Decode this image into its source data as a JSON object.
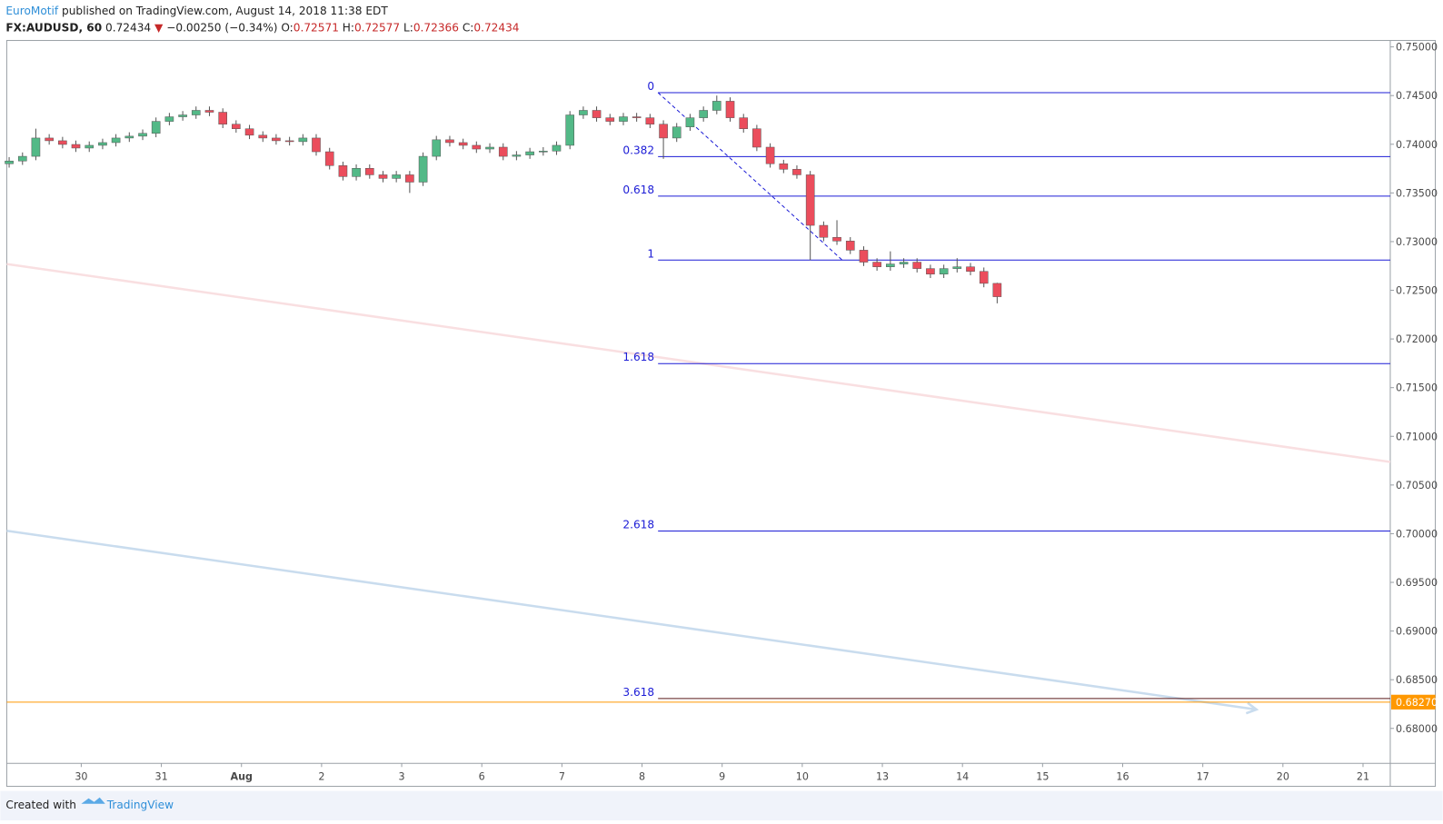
{
  "header": {
    "author": "EuroMotif",
    "published": "published on TradingView.com, August 14, 2018 11:38 EDT",
    "symbol": "FX:AUDUSD, 60",
    "last": "0.72434",
    "arrow": "▼",
    "change": "−0.00250 (−0.34%)",
    "o_label": "O:",
    "o": "0.72571",
    "h_label": "H:",
    "h": "0.72577",
    "l_label": "L:",
    "l": "0.72366",
    "c_label": "C:",
    "c": "0.72434"
  },
  "footer": {
    "created": "Created with",
    "brand": "TradingView"
  },
  "chart_data": {
    "type": "candlestick",
    "up_color": "#53b987",
    "down_color": "#eb4d5c",
    "xlim": [
      -0.93,
      16.34
    ],
    "ylim": [
      0.67641,
      0.75066
    ],
    "xticks": [
      {
        "value": 0,
        "label": "30"
      },
      {
        "value": 1,
        "label": "31"
      },
      {
        "value": 2,
        "label": "Aug"
      },
      {
        "value": 3,
        "label": "2"
      },
      {
        "value": 4,
        "label": "3"
      },
      {
        "value": 5,
        "label": "6"
      },
      {
        "value": 6,
        "label": "7"
      },
      {
        "value": 7,
        "label": "8"
      },
      {
        "value": 8,
        "label": "9"
      },
      {
        "value": 9,
        "label": "10"
      },
      {
        "value": 10,
        "label": "13"
      },
      {
        "value": 11,
        "label": "14"
      },
      {
        "value": 12,
        "label": "15"
      },
      {
        "value": 13,
        "label": "16"
      },
      {
        "value": 14,
        "label": "17"
      },
      {
        "value": 15,
        "label": "20"
      },
      {
        "value": 16,
        "label": "21"
      }
    ],
    "yticks": [
      {
        "value": 0.68,
        "label": "0.68000"
      },
      {
        "value": 0.685,
        "label": "0.68500"
      },
      {
        "value": 0.69,
        "label": "0.69000"
      },
      {
        "value": 0.695,
        "label": "0.69500"
      },
      {
        "value": 0.7,
        "label": "0.70000"
      },
      {
        "value": 0.705,
        "label": "0.70500"
      },
      {
        "value": 0.71,
        "label": "0.71000"
      },
      {
        "value": 0.715,
        "label": "0.71500"
      },
      {
        "value": 0.72,
        "label": "0.72000"
      },
      {
        "value": 0.725,
        "label": "0.72500"
      },
      {
        "value": 0.73,
        "label": "0.73000"
      },
      {
        "value": 0.735,
        "label": "0.73500"
      },
      {
        "value": 0.74,
        "label": "0.74000"
      },
      {
        "value": 0.745,
        "label": "0.74500"
      },
      {
        "value": 0.75,
        "label": "0.75000"
      }
    ],
    "x": [
      -0.9,
      -0.733,
      -0.567,
      -0.4,
      -0.233,
      -0.067,
      0.1,
      0.267,
      0.433,
      0.6,
      0.767,
      0.933,
      1.1,
      1.267,
      1.433,
      1.6,
      1.767,
      1.933,
      2.1,
      2.267,
      2.433,
      2.6,
      2.767,
      2.933,
      3.1,
      3.267,
      3.433,
      3.6,
      3.767,
      3.933,
      4.1,
      4.267,
      4.433,
      4.6,
      4.767,
      4.933,
      5.1,
      5.267,
      5.433,
      5.6,
      5.767,
      5.933,
      6.1,
      6.267,
      6.433,
      6.6,
      6.767,
      6.933,
      7.1,
      7.267,
      7.433,
      7.6,
      7.767,
      7.933,
      8.1,
      8.267,
      8.433,
      8.6,
      8.767,
      8.933,
      9.1,
      9.267,
      9.433,
      9.6,
      9.767,
      9.933,
      10.1,
      10.267,
      10.433,
      10.6,
      10.767,
      10.933,
      11.1,
      11.267,
      11.433
    ],
    "open": [
      0.738,
      0.73828,
      0.73876,
      0.74064,
      0.74036,
      0.73998,
      0.73961,
      0.73989,
      0.74017,
      0.74064,
      0.74083,
      0.74112,
      0.74235,
      0.74282,
      0.74301,
      0.74348,
      0.74329,
      0.74206,
      0.74159,
      0.74093,
      0.74064,
      0.74036,
      0.74027,
      0.74064,
      0.73923,
      0.73781,
      0.73668,
      0.73753,
      0.73686,
      0.73649,
      0.73686,
      0.73611,
      0.73876,
      0.74046,
      0.74017,
      0.73989,
      0.73951,
      0.7397,
      0.73876,
      0.7389,
      0.73923,
      0.7393,
      0.73989,
      0.74301,
      0.74348,
      0.74272,
      0.74235,
      0.74282,
      0.74272,
      0.74206,
      0.74064,
      0.74178,
      0.74272,
      0.74348,
      0.74442,
      0.74272,
      0.74159,
      0.7397,
      0.738,
      0.73743,
      0.73686,
      0.73167,
      0.73044,
      0.73006,
      0.72912,
      0.72789,
      0.72741,
      0.7277,
      0.72789,
      0.72723,
      0.72666,
      0.72723,
      0.72741,
      0.72694,
      0.72571
    ],
    "high": [
      0.73868,
      0.73916,
      0.7416,
      0.74104,
      0.74076,
      0.74038,
      0.74029,
      0.74057,
      0.74104,
      0.74123,
      0.74152,
      0.74275,
      0.74322,
      0.74341,
      0.74388,
      0.74388,
      0.74369,
      0.74246,
      0.74199,
      0.74133,
      0.74104,
      0.74076,
      0.74104,
      0.74104,
      0.73963,
      0.73821,
      0.73793,
      0.73793,
      0.73726,
      0.73726,
      0.73726,
      0.73916,
      0.74086,
      0.74086,
      0.74057,
      0.74029,
      0.7401,
      0.7401,
      0.7393,
      0.73963,
      0.7397,
      0.74029,
      0.74341,
      0.74388,
      0.74388,
      0.74312,
      0.74322,
      0.74322,
      0.74312,
      0.74246,
      0.74218,
      0.74312,
      0.74388,
      0.745,
      0.74482,
      0.74312,
      0.74199,
      0.7401,
      0.7384,
      0.73783,
      0.73726,
      0.73207,
      0.7322,
      0.73046,
      0.72952,
      0.72829,
      0.729,
      0.72829,
      0.72829,
      0.72763,
      0.72763,
      0.7283,
      0.72781,
      0.72734,
      0.72577
    ],
    "low": [
      0.7376,
      0.73788,
      0.73836,
      0.73996,
      0.73958,
      0.73921,
      0.73921,
      0.73949,
      0.73977,
      0.74024,
      0.74043,
      0.74072,
      0.74195,
      0.74242,
      0.74261,
      0.74289,
      0.74166,
      0.74119,
      0.74053,
      0.74024,
      0.73996,
      0.73987,
      0.73987,
      0.73883,
      0.73741,
      0.73628,
      0.73628,
      0.73646,
      0.73609,
      0.73609,
      0.735,
      0.73571,
      0.73836,
      0.73977,
      0.73949,
      0.73911,
      0.73911,
      0.73836,
      0.73836,
      0.7385,
      0.73883,
      0.7389,
      0.73949,
      0.74261,
      0.74232,
      0.74195,
      0.74195,
      0.74232,
      0.74166,
      0.7385,
      0.74024,
      0.74138,
      0.74232,
      0.74308,
      0.74232,
      0.74119,
      0.7393,
      0.7376,
      0.73703,
      0.73646,
      0.7281,
      0.73004,
      0.72966,
      0.72872,
      0.72749,
      0.72701,
      0.72701,
      0.7273,
      0.72683,
      0.72626,
      0.72626,
      0.72683,
      0.72654,
      0.72531,
      0.72366
    ],
    "close": [
      0.73828,
      0.73876,
      0.74064,
      0.74036,
      0.73998,
      0.73961,
      0.73989,
      0.74017,
      0.74064,
      0.74083,
      0.74112,
      0.74235,
      0.74282,
      0.74301,
      0.74348,
      0.74329,
      0.74206,
      0.74159,
      0.74093,
      0.74064,
      0.74036,
      0.74027,
      0.74064,
      0.73923,
      0.73781,
      0.73668,
      0.73753,
      0.73686,
      0.73649,
      0.73686,
      0.73611,
      0.73876,
      0.74046,
      0.74017,
      0.73989,
      0.73951,
      0.7397,
      0.73876,
      0.7389,
      0.73923,
      0.7393,
      0.73989,
      0.74301,
      0.74348,
      0.74272,
      0.74235,
      0.74282,
      0.74272,
      0.74206,
      0.74064,
      0.74178,
      0.74272,
      0.74348,
      0.74442,
      0.74272,
      0.74159,
      0.7397,
      0.738,
      0.73743,
      0.73686,
      0.73167,
      0.73044,
      0.73006,
      0.72912,
      0.72789,
      0.72741,
      0.7277,
      0.72789,
      0.72723,
      0.72666,
      0.72723,
      0.72741,
      0.72694,
      0.72571,
      0.72434
    ],
    "fib_start_x": 7.2,
    "fib_color": "#1c1cd6",
    "fib_levels": [
      {
        "ratio": 0,
        "value": 0.7453
      },
      {
        "ratio": 0.382,
        "value": 0.73873
      },
      {
        "ratio": 0.618,
        "value": 0.73467
      },
      {
        "ratio": 1,
        "value": 0.7281
      },
      {
        "ratio": 1.618,
        "value": 0.71747
      },
      {
        "ratio": 2.618,
        "value": 0.70027
      },
      {
        "ratio": 3.618,
        "value": 0.68307
      }
    ],
    "trend_lines": [
      {
        "x": [
          7.2,
          9.5
        ],
        "y": [
          0.7453,
          0.7281
        ],
        "color": "#1c1cd6",
        "dashed": true,
        "arrow": false
      },
      {
        "x": [
          -0.93,
          16.34
        ],
        "y": [
          0.7277,
          0.70737
        ],
        "color": "#f9dfe1",
        "dashed": false,
        "arrow": false
      },
      {
        "x": [
          -0.93,
          14.67
        ],
        "y": [
          0.7003,
          0.68194
        ],
        "color": "#c9dcee",
        "dashed": false,
        "arrow": true
      }
    ],
    "price_line": {
      "value": 0.6827,
      "label": "0.68270",
      "color": "#ff9800"
    }
  }
}
